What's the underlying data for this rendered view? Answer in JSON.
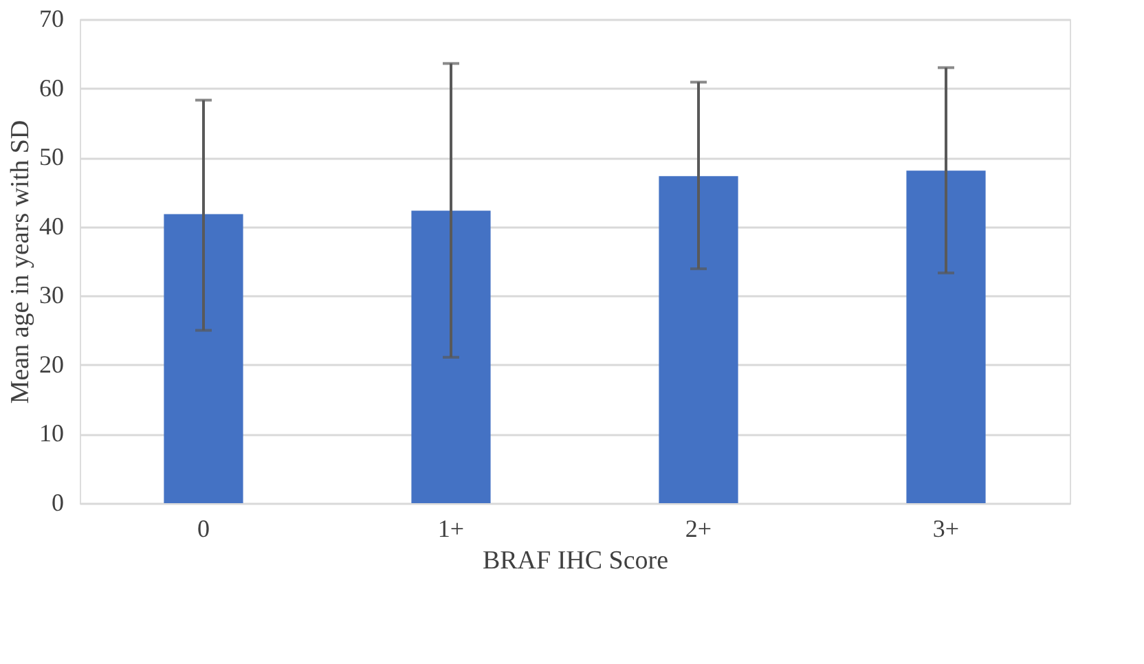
{
  "chart_data": {
    "type": "bar",
    "xlabel": "BRAF IHC Score",
    "ylabel": "Mean age in years with SD",
    "categories": [
      "0",
      "1+",
      "2+",
      "3+"
    ],
    "values": [
      41.8,
      42.3,
      47.3,
      48.1
    ],
    "errors": [
      [
        25.0,
        58.3
      ],
      [
        21.1,
        63.6
      ],
      [
        33.9,
        60.9
      ],
      [
        33.3,
        63.0
      ]
    ],
    "color": "#4472c4",
    "ylim": [
      0,
      70
    ],
    "yticks": [
      0,
      10,
      20,
      30,
      40,
      50,
      60,
      70
    ],
    "grid": "y"
  }
}
